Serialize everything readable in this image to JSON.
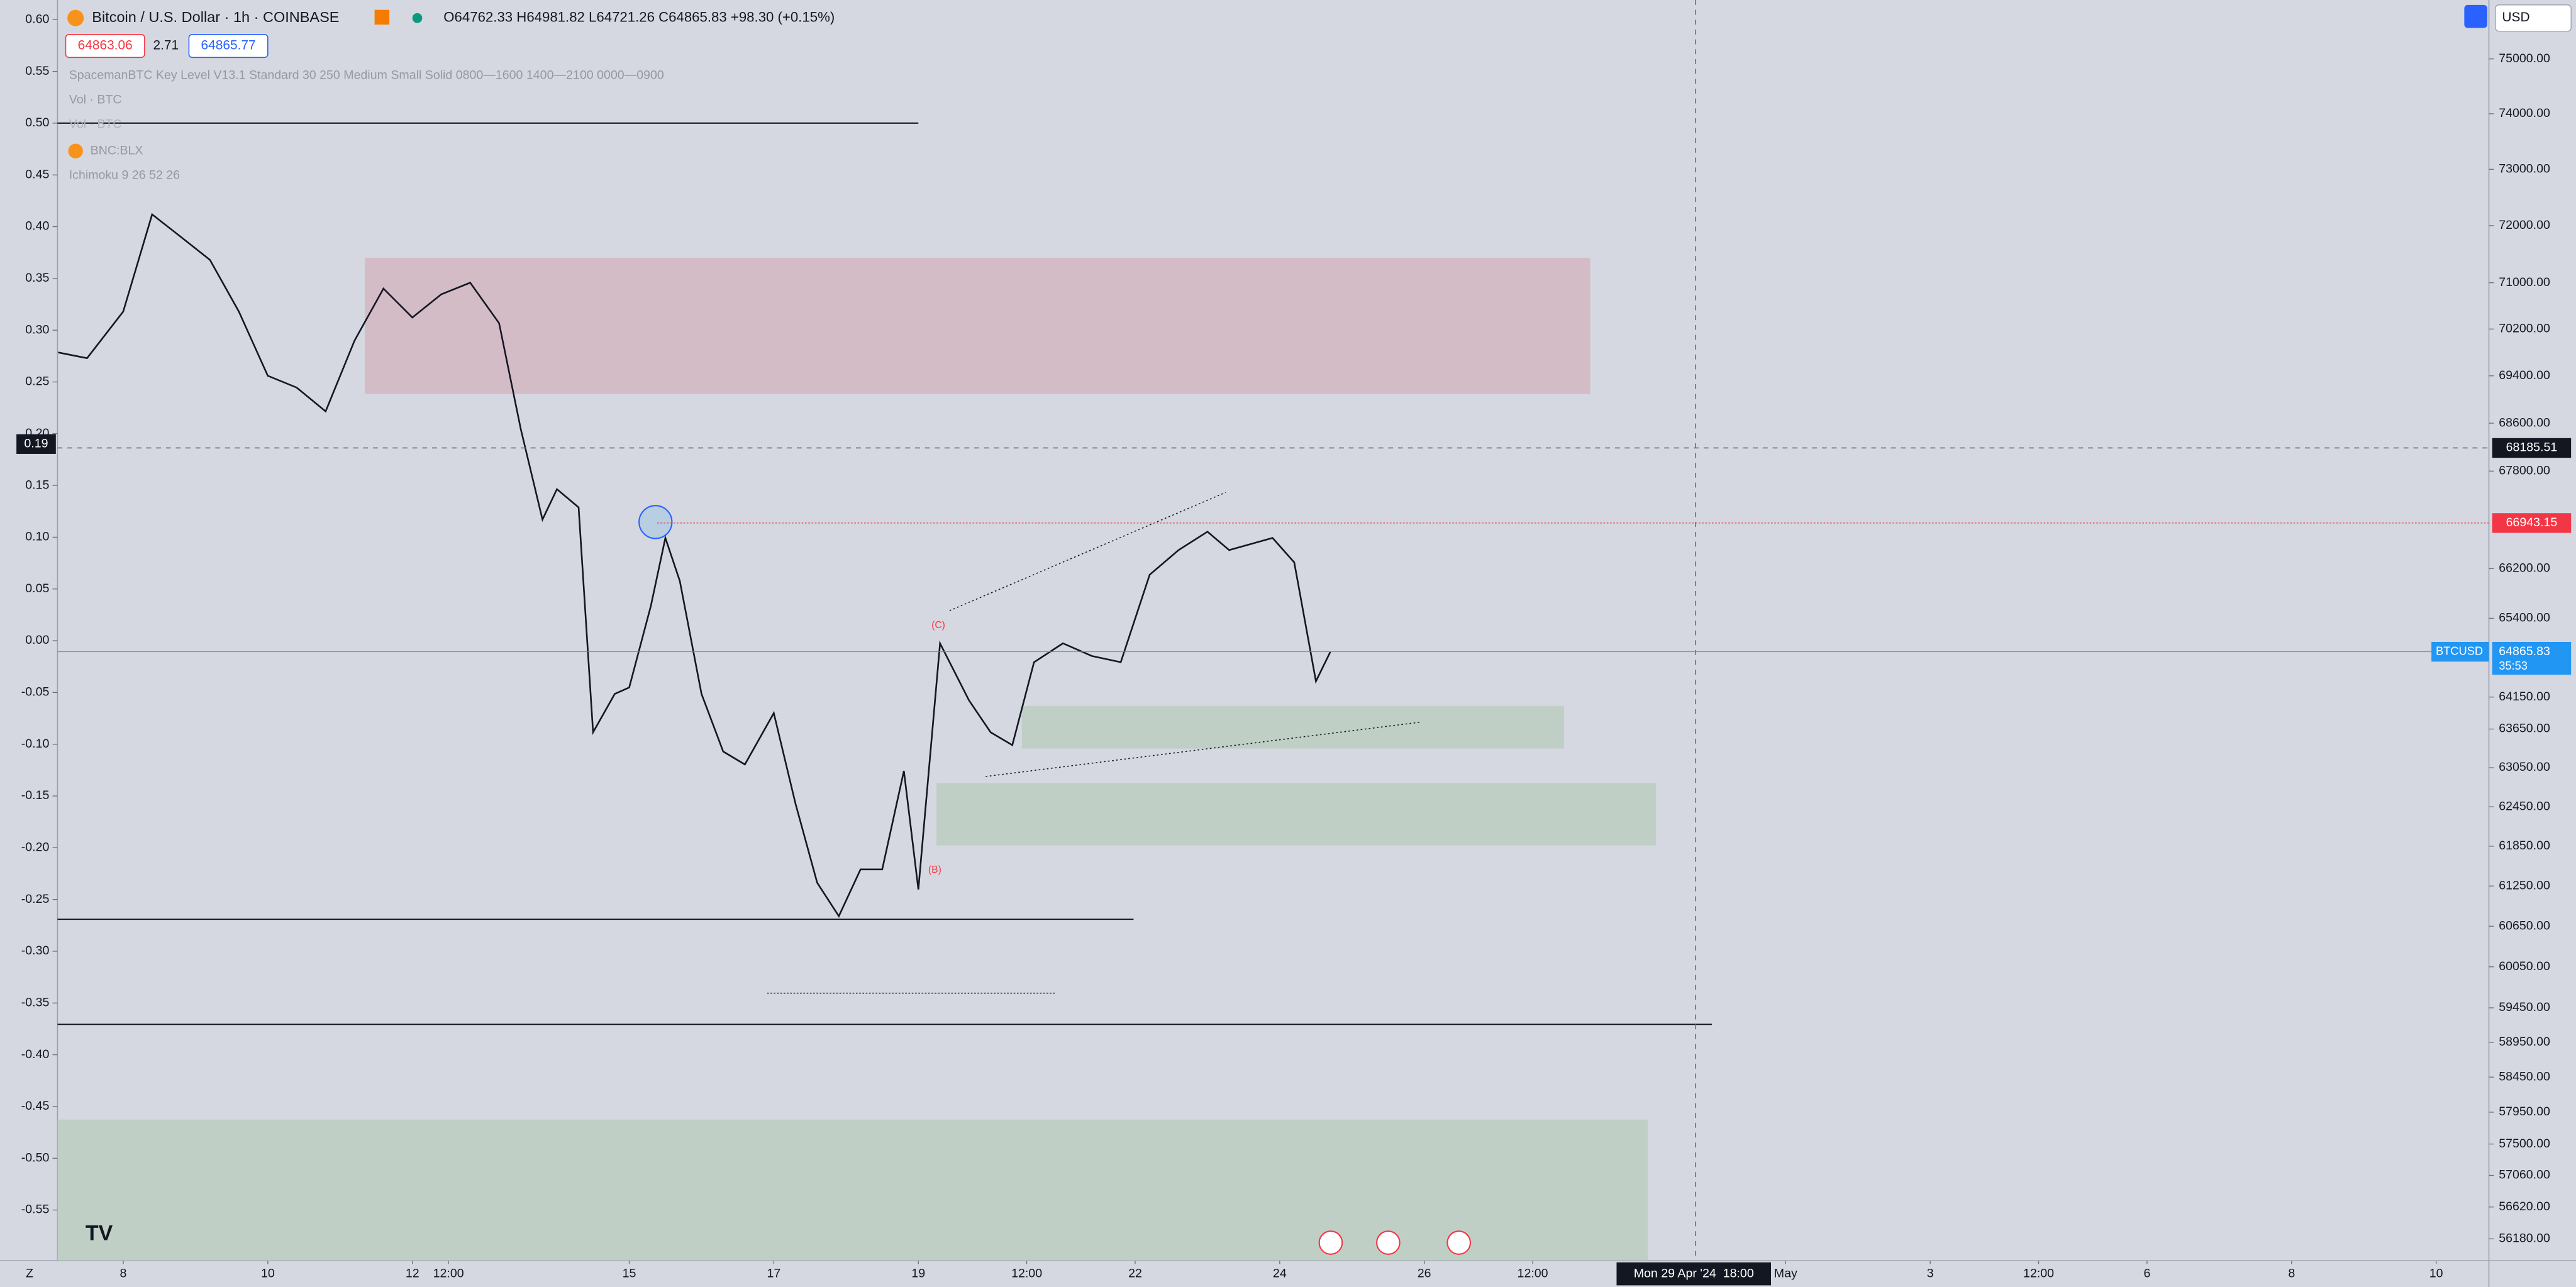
{
  "header": {
    "title": "Bitcoin / U.S. Dollar · 1h · COINBASE",
    "ohlc": "O64762.33 H64981.82 L64721.26 C64865.83 +98.30 (+0.15%)",
    "bid": "64863.06",
    "spread": "2.71",
    "ask": "64865.77",
    "indicators": [
      "SpacemanBTC Key Level V13.1 Standard 30 250 Medium Small Solid 0800—1600 1400—2100 0000—0900",
      "Vol · BTC",
      "Vol · BTC",
      "BNC:BLX",
      "Ichimoku 9 26 52 26"
    ],
    "currency": "USD",
    "scale_mode": "Z"
  },
  "annotations": [
    "(C)",
    "(B)"
  ],
  "crosshair": {
    "time": "Mon 29 Apr '24  18:00",
    "price": 68185.51,
    "left_value": 0.19
  },
  "price_tags": {
    "symbol": "BTCUSD",
    "last": 64865.83,
    "countdown": "35:53",
    "level": 66943.15
  },
  "chart_data": {
    "type": "line",
    "log_scale": true,
    "grid": false,
    "x": [
      7.1,
      7.5,
      8.0,
      8.4,
      8.8,
      9.2,
      9.6,
      10.0,
      10.4,
      10.8,
      11.2,
      11.6,
      12.0,
      12.4,
      12.8,
      13.2,
      13.5,
      13.8,
      14.0,
      14.3,
      14.5,
      14.8,
      15.0,
      15.3,
      15.5,
      15.7,
      16.0,
      16.3,
      16.6,
      17.0,
      17.3,
      17.6,
      17.9,
      18.2,
      18.5,
      18.8,
      19.0,
      19.3,
      19.7,
      20.0,
      20.3,
      20.6,
      21.0,
      21.4,
      21.8,
      22.2,
      22.6,
      23.0,
      23.3,
      23.6,
      23.9,
      24.2,
      24.5,
      24.7
    ],
    "series": [
      {
        "name": "BTCUSD",
        "color": "#131722",
        "values": [
          69800,
          69700,
          70500,
          72200,
          71800,
          71400,
          70500,
          69400,
          69200,
          68800,
          70000,
          70900,
          70400,
          70800,
          71000,
          70300,
          68500,
          67000,
          67500,
          67200,
          63600,
          64200,
          64300,
          65600,
          66700,
          66000,
          64200,
          63300,
          63100,
          63900,
          62500,
          61300,
          60800,
          61500,
          61500,
          63000,
          61200,
          65000,
          64100,
          63600,
          63400,
          64700,
          65000,
          64800,
          64700,
          66100,
          66500,
          66800,
          66500,
          66600,
          66700,
          66300,
          64400,
          64865.83
        ]
      }
    ],
    "xlim": [
      7.09,
      40.73
    ],
    "xticks": [
      8,
      10,
      12,
      {
        "value": 12.5,
        "label": "12:00"
      },
      15,
      17,
      19,
      {
        "value": 20.5,
        "label": "12:00"
      },
      22,
      24,
      26,
      {
        "value": 27.5,
        "label": "12:00"
      },
      {
        "value": 31,
        "label": "May"
      },
      {
        "value": 33,
        "label": "3"
      },
      {
        "value": 34.5,
        "label": "12:00"
      },
      {
        "value": 36,
        "label": "6"
      },
      {
        "value": 38,
        "label": "8"
      },
      {
        "value": 40,
        "label": "10"
      }
    ],
    "ylim": [
      55880,
      76090
    ],
    "yticks": [
      {
        "value": 75000,
        "label": "75000.00"
      },
      {
        "value": 74000,
        "label": "74000.00"
      },
      {
        "value": 73000,
        "label": "73000.00"
      },
      {
        "value": 72000,
        "label": "72000.00"
      },
      {
        "value": 71000,
        "label": "71000.00"
      },
      {
        "value": 70200,
        "label": "70200.00"
      },
      {
        "value": 69400,
        "label": "69400.00"
      },
      {
        "value": 68600,
        "label": "68600.00"
      },
      {
        "value": 67800,
        "label": "67800.00"
      },
      {
        "value": 66200,
        "label": "66200.00"
      },
      {
        "value": 65400,
        "label": "65400.00"
      },
      {
        "value": 64150,
        "label": "64150.00"
      },
      {
        "value": 63650,
        "label": "63650.00"
      },
      {
        "value": 63050,
        "label": "63050.00"
      },
      {
        "value": 62450,
        "label": "62450.00"
      },
      {
        "value": 61850,
        "label": "61850.00"
      },
      {
        "value": 61250,
        "label": "61250.00"
      },
      {
        "value": 60650,
        "label": "60650.00"
      },
      {
        "value": 60050,
        "label": "60050.00"
      },
      {
        "value": 59450,
        "label": "59450.00"
      },
      {
        "value": 58950,
        "label": "58950.00"
      },
      {
        "value": 58450,
        "label": "58450.00"
      },
      {
        "value": 57950,
        "label": "57950.00"
      },
      {
        "value": 57500,
        "label": "57500.00"
      },
      {
        "value": 57060,
        "label": "57060.00"
      },
      {
        "value": 56620,
        "label": "56620.00"
      },
      {
        "value": 56180,
        "label": "56180.00"
      }
    ],
    "y2lim": [
      -0.599,
      0.619
    ],
    "y2ticks": [
      {
        "value": 0.6,
        "label": "0.60"
      },
      0.55,
      {
        "value": 0.5,
        "label": "0.50"
      },
      0.45,
      {
        "value": 0.4,
        "label": "0.40"
      },
      0.35,
      {
        "value": 0.3,
        "label": "0.30"
      },
      0.25,
      {
        "value": 0.2,
        "label": "0.20"
      },
      0.15,
      {
        "value": 0.1,
        "label": "0.10"
      },
      0.05,
      {
        "value": 0,
        "label": "0.00"
      },
      -0.05,
      {
        "value": -0.1,
        "label": "-0.10"
      },
      -0.15,
      {
        "value": -0.2,
        "label": "-0.20"
      },
      -0.25,
      {
        "value": -0.3,
        "label": "-0.30"
      },
      -0.35,
      {
        "value": -0.4,
        "label": "-0.40"
      },
      -0.45,
      {
        "value": -0.5,
        "label": "-0.50"
      },
      -0.55
    ]
  }
}
